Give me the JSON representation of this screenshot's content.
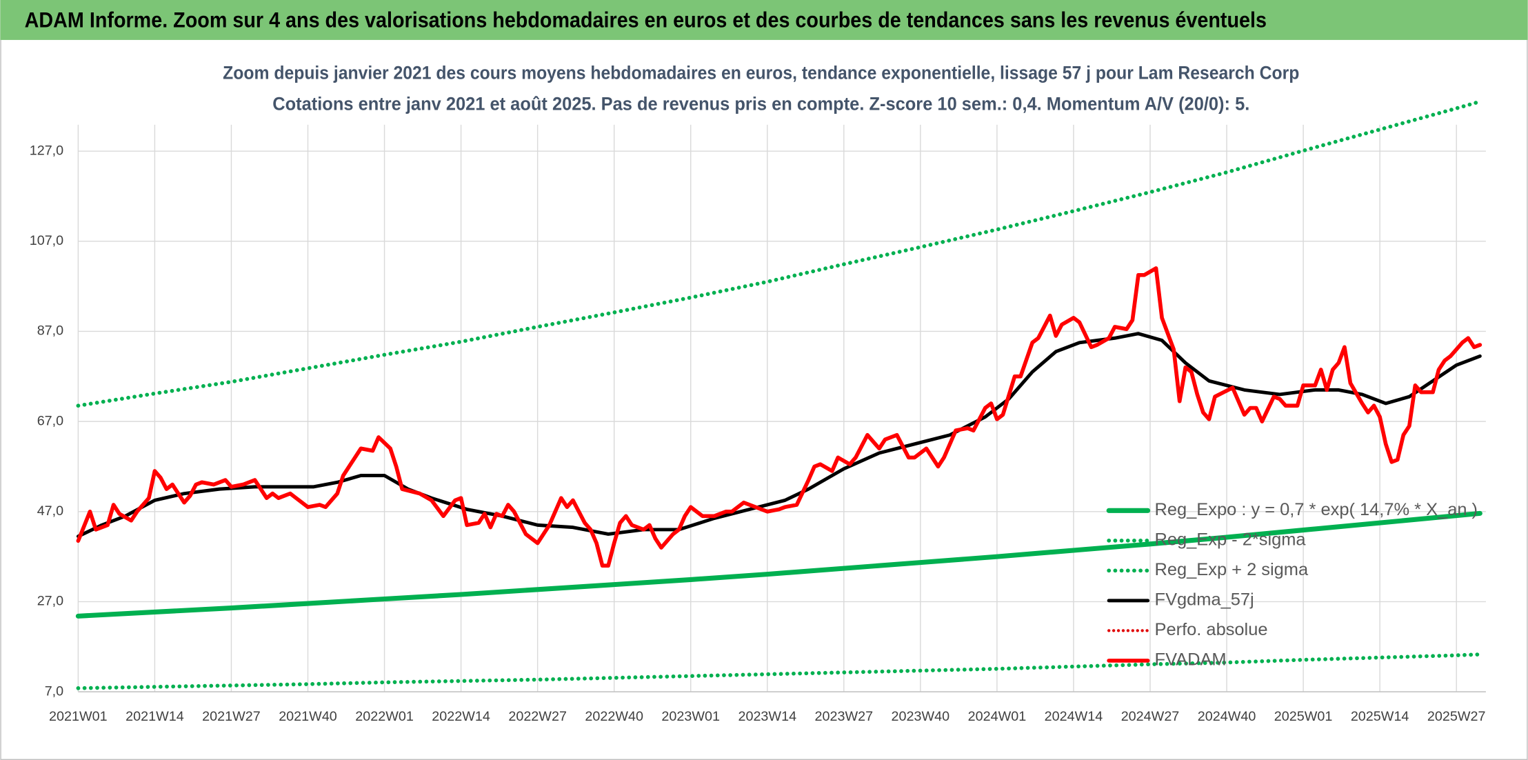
{
  "chart_data": {
    "type": "line",
    "header": "ADAM Informe. Zoom sur 4 ans des valorisations hebdomadaires en euros et des courbes de tendances sans les revenus éventuels",
    "title": "Zoom depuis janvier 2021 des cours moyens hebdomadaires en euros, tendance exponentielle, lissage 57 j pour Lam Research Corp",
    "subtitle": "Cotations entre janv 2021 et août 2025. Pas de revenus pris en compte. Z-score 10 sem.: 0,4. Momentum A/V (20/0): 5.",
    "xlim": [
      0,
      239
    ],
    "xticks": [
      {
        "value": 0,
        "label": "2021W01"
      },
      {
        "value": 13,
        "label": "2021W14"
      },
      {
        "value": 26,
        "label": "2021W27"
      },
      {
        "value": 39,
        "label": "2021W40"
      },
      {
        "value": 52,
        "label": "2022W01"
      },
      {
        "value": 65,
        "label": "2022W14"
      },
      {
        "value": 78,
        "label": "2022W27"
      },
      {
        "value": 91,
        "label": "2022W40"
      },
      {
        "value": 104,
        "label": "2023W01"
      },
      {
        "value": 117,
        "label": "2023W14"
      },
      {
        "value": 130,
        "label": "2023W27"
      },
      {
        "value": 143,
        "label": "2023W40"
      },
      {
        "value": 156,
        "label": "2024W01"
      },
      {
        "value": 169,
        "label": "2024W14"
      },
      {
        "value": 182,
        "label": "2024W27"
      },
      {
        "value": 195,
        "label": "2024W40"
      },
      {
        "value": 208,
        "label": "2025W01"
      },
      {
        "value": 221,
        "label": "2025W14"
      },
      {
        "value": 234,
        "label": "2025W27"
      }
    ],
    "ylim": [
      7,
      140
    ],
    "yticks": [
      {
        "value": 7,
        "label": "7,0"
      },
      {
        "value": 27,
        "label": "27,0"
      },
      {
        "value": 47,
        "label": "47,0"
      },
      {
        "value": 67,
        "label": "67,0"
      },
      {
        "value": 87,
        "label": "87,0"
      },
      {
        "value": 107,
        "label": "107,0"
      },
      {
        "value": 127,
        "label": "127,0"
      }
    ],
    "grid": true,
    "legend": "lower right",
    "series": [
      {
        "name": "Reg_Expo : y = 0,7 * exp( 14,7% *  X_an )",
        "color": "#00b050",
        "style": "solid",
        "width": 5,
        "x": [
          0,
          13,
          26,
          39,
          52,
          65,
          78,
          91,
          104,
          117,
          130,
          143,
          156,
          169,
          182,
          195,
          208,
          221,
          234,
          238
        ],
        "values": [
          23.8,
          24.7,
          25.6,
          26.6,
          27.6,
          28.6,
          29.7,
          30.8,
          31.9,
          33.1,
          34.4,
          35.7,
          37.0,
          38.4,
          39.8,
          41.3,
          42.9,
          44.5,
          46.1,
          46.6
        ]
      },
      {
        "name": "Reg_Exp - 2*sigma",
        "color": "#00b050",
        "style": "dotted",
        "width": 4,
        "x": [
          0,
          13,
          26,
          39,
          52,
          65,
          78,
          91,
          104,
          117,
          130,
          143,
          156,
          169,
          182,
          195,
          208,
          221,
          234,
          238
        ],
        "values": [
          7.8,
          8.1,
          8.4,
          8.7,
          9.1,
          9.4,
          9.7,
          10.1,
          10.5,
          10.9,
          11.3,
          11.7,
          12.1,
          12.6,
          13.1,
          13.5,
          14.1,
          14.6,
          15.1,
          15.3
        ]
      },
      {
        "name": "Reg_Exp + 2 sigma",
        "color": "#00b050",
        "style": "dotted",
        "width": 4,
        "x": [
          0,
          13,
          26,
          39,
          52,
          65,
          78,
          91,
          104,
          117,
          130,
          143,
          156,
          169,
          182,
          195,
          208,
          221,
          234,
          238
        ],
        "values": [
          70.5,
          73.2,
          75.8,
          78.8,
          81.8,
          84.7,
          88.0,
          91.2,
          94.5,
          98.0,
          101.9,
          105.7,
          109.6,
          113.7,
          117.9,
          122.3,
          127.1,
          131.8,
          136.5,
          138.0
        ]
      },
      {
        "name": "FVgdma_57j",
        "color": "#000000",
        "style": "solid",
        "width": 3.5,
        "x": [
          0,
          4,
          8,
          13,
          18,
          24,
          30,
          36,
          40,
          44,
          48,
          52,
          56,
          60,
          66,
          72,
          78,
          84,
          90,
          96,
          102,
          108,
          114,
          120,
          124,
          130,
          136,
          142,
          148,
          154,
          158,
          162,
          166,
          170,
          176,
          180,
          184,
          188,
          192,
          198,
          204,
          210,
          214,
          218,
          222,
          226,
          230,
          234,
          238
        ],
        "values": [
          41.5,
          44,
          46,
          49.5,
          51,
          52,
          52.5,
          52.5,
          52.5,
          53.5,
          55,
          55,
          52,
          50,
          47.5,
          46,
          44,
          43.5,
          42,
          43,
          43,
          45.5,
          47.5,
          49.5,
          52,
          56.5,
          60,
          62,
          64,
          68,
          72,
          78,
          82.5,
          84.5,
          85.5,
          86.5,
          85,
          80,
          76,
          74,
          73,
          74,
          74,
          73,
          71,
          72.5,
          76,
          79.5,
          81.5
        ]
      },
      {
        "name": "Perfo. absolue",
        "color": "#e00000",
        "style": "dotted",
        "width": 3
      },
      {
        "name": "FVADAM",
        "color": "#ff0000",
        "style": "solid",
        "width": 4,
        "x": [
          0,
          2,
          3,
          5,
          6,
          7,
          9,
          10,
          12,
          13,
          14,
          15,
          16,
          18,
          19,
          20,
          21,
          23,
          25,
          26,
          28,
          30,
          32,
          33,
          34,
          36,
          37,
          39,
          41,
          42,
          44,
          45,
          47,
          48,
          50,
          51,
          53,
          54,
          55,
          58,
          60,
          62,
          64,
          65,
          66,
          68,
          69,
          70,
          71,
          72,
          73,
          74,
          76,
          77,
          78,
          80,
          82,
          83,
          84,
          86,
          87,
          88,
          89,
          90,
          91,
          92,
          93,
          94,
          96,
          97,
          98,
          99,
          101,
          102,
          103,
          104,
          106,
          108,
          110,
          111,
          113,
          115,
          117,
          119,
          120,
          122,
          124,
          125,
          126,
          128,
          129,
          131,
          132,
          134,
          136,
          137,
          139,
          141,
          142,
          144,
          146,
          147,
          149,
          151,
          152,
          154,
          155,
          156,
          157,
          159,
          160,
          162,
          163,
          165,
          166,
          167,
          169,
          170,
          172,
          173,
          175,
          176,
          178,
          179,
          180,
          181,
          183,
          184,
          186,
          187,
          188,
          189,
          190,
          191,
          192,
          193,
          196,
          198,
          199,
          200,
          201,
          203,
          204,
          205,
          207,
          208,
          210,
          211,
          212,
          213,
          214,
          215,
          216,
          218,
          219,
          220,
          221,
          222,
          223,
          224,
          225,
          226,
          227,
          228,
          230,
          231,
          232,
          233,
          235,
          236,
          237,
          238
        ],
        "values": [
          40.5,
          47,
          43,
          44,
          48.5,
          46.5,
          45,
          47,
          50,
          56,
          54.5,
          52,
          53,
          49,
          50.5,
          53,
          53.5,
          53,
          54,
          52.5,
          53,
          54,
          50,
          51,
          50,
          51,
          50,
          48,
          48.5,
          48,
          51,
          55,
          59,
          61,
          60.5,
          63.5,
          61,
          57,
          52,
          51,
          49.5,
          46,
          49.5,
          50,
          44,
          44.5,
          46.5,
          43.5,
          46.5,
          46,
          48.5,
          47,
          42,
          41,
          40,
          44,
          50,
          48,
          49.5,
          44.5,
          43,
          40,
          35,
          35,
          40,
          44.5,
          46,
          44,
          43,
          44,
          41,
          39,
          42,
          43,
          46,
          48,
          46,
          46,
          47,
          47,
          49,
          48,
          47,
          47.5,
          48,
          48.5,
          54,
          57,
          57.5,
          56,
          59,
          57.5,
          59,
          64,
          61,
          63,
          64,
          59,
          59,
          61,
          57,
          59,
          65,
          65.5,
          65,
          70,
          71,
          67.5,
          68.5,
          77,
          77,
          84.5,
          85.5,
          90.5,
          86,
          88.5,
          90,
          89,
          83.5,
          84,
          85.5,
          88,
          87.5,
          89.5,
          99.5,
          99.5,
          101,
          90,
          83,
          71.5,
          79,
          78,
          73,
          69,
          67.5,
          72.5,
          74.5,
          68.5,
          70,
          70,
          67,
          72.5,
          72,
          70.5,
          70.5,
          75,
          75,
          78.5,
          74,
          78.5,
          80,
          83.5,
          75.5,
          71,
          69,
          70.5,
          68,
          62,
          58,
          58.5,
          64,
          66,
          75,
          73.5,
          73.5,
          78.5,
          80.5,
          81.5,
          84.5,
          85.5,
          83.5,
          84
        ]
      }
    ]
  }
}
